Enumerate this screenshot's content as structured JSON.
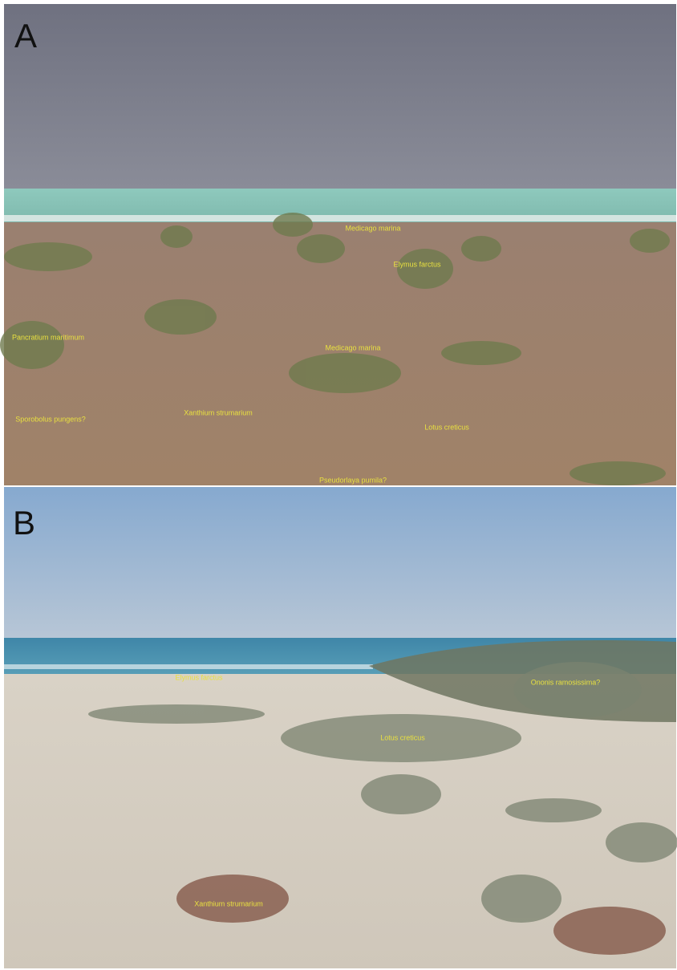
{
  "panels": [
    {
      "label": "A",
      "annotations": [
        "Medicago marina",
        "Elymus farctus",
        "Pancratium maritimum",
        "Medicago marina",
        "Sporobolus pungens?",
        "Xanthium strumarium",
        "Lotus creticus",
        "Pseudorlaya pumila?"
      ]
    },
    {
      "label": "B",
      "annotations": [
        "Elymus farctus",
        "Ononis ramosissima?",
        "Lotus creticus",
        "Xanthium strumarium"
      ]
    }
  ]
}
